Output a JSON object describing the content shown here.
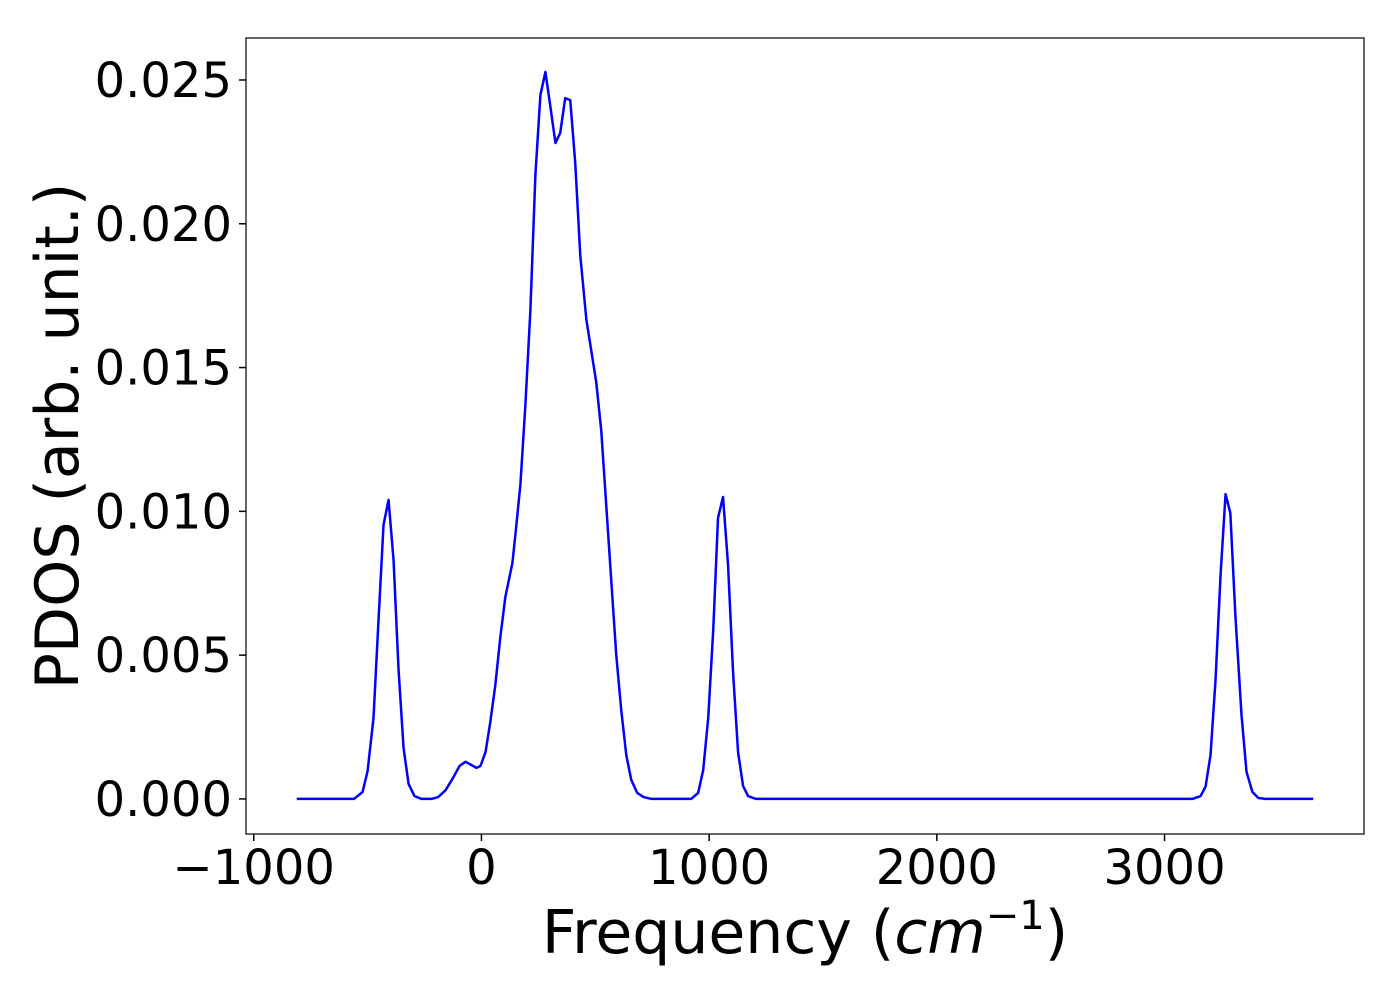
{
  "chart_data": {
    "type": "line",
    "ylabel": "PDOS (arb. unit.)",
    "xlabel_parts": [
      "Frequency (",
      "cm",
      "−1",
      ")"
    ],
    "xlim": [
      -1034,
      3876
    ],
    "ylim": [
      -0.00122,
      0.02646
    ],
    "xticks": [
      {
        "value": -1000,
        "label": "−1000"
      },
      0,
      1000,
      2000,
      3000
    ],
    "yticks": [
      {
        "value": 0,
        "label": "0.000"
      },
      {
        "value": 0.005,
        "label": "0.005"
      },
      {
        "value": 0.01,
        "label": "0.010"
      },
      {
        "value": 0.015,
        "label": "0.015"
      },
      {
        "value": 0.02,
        "label": "0.020"
      },
      {
        "value": 0.025,
        "label": "0.025"
      }
    ],
    "grid": false,
    "series": [
      {
        "color": "#0000ff",
        "x": [
          -811,
          -560,
          -522,
          -500,
          -474,
          -452,
          -430,
          -408,
          -386,
          -364,
          -342,
          -320,
          -294,
          -263,
          -219,
          -189,
          -158,
          -127,
          -96,
          -70,
          -44,
          -22,
          -4,
          18,
          39,
          61,
          83,
          105,
          136,
          149,
          171,
          193,
          215,
          237,
          259,
          281,
          303,
          325,
          346,
          368,
          390,
          412,
          434,
          461,
          482,
          504,
          526,
          548,
          570,
          592,
          614,
          636,
          658,
          684,
          711,
          746,
          921,
          952,
          974,
          996,
          1018,
          1039,
          1061,
          1083,
          1105,
          1127,
          1149,
          1171,
          1206,
          3123,
          3158,
          3180,
          3202,
          3224,
          3246,
          3268,
          3289,
          3311,
          3338,
          3360,
          3386,
          3412,
          3443,
          3653
        ],
        "values": [
          0,
          0,
          0.00024,
          0.00097,
          0.00282,
          0.00622,
          0.00953,
          0.0104,
          0.00831,
          0.00449,
          0.00177,
          0.00052,
          0.0001,
          0,
          0,
          7e-05,
          0.0003,
          0.0007,
          0.00115,
          0.00129,
          0.00118,
          0.00108,
          0.00115,
          0.00163,
          0.00268,
          0.00396,
          0.00563,
          0.00702,
          0.00821,
          0.00918,
          0.01092,
          0.0137,
          0.017,
          0.0217,
          0.02448,
          0.02528,
          0.02406,
          0.02281,
          0.02316,
          0.02437,
          0.0243,
          0.02211,
          0.01891,
          0.01665,
          0.01561,
          0.0145,
          0.01283,
          0.01022,
          0.00761,
          0.00501,
          0.00309,
          0.00153,
          0.00066,
          0.00021,
          7e-05,
          0,
          0,
          0.00021,
          0.00101,
          0.00282,
          0.00588,
          0.00977,
          0.0105,
          0.00814,
          0.00442,
          0.00163,
          0.00045,
          0.0001,
          0,
          0,
          0.0001,
          0.00042,
          0.00153,
          0.00414,
          0.00779,
          0.0106,
          0.00994,
          0.0064,
          0.00292,
          0.00094,
          0.00024,
          3e-05,
          0,
          0
        ]
      }
    ]
  }
}
